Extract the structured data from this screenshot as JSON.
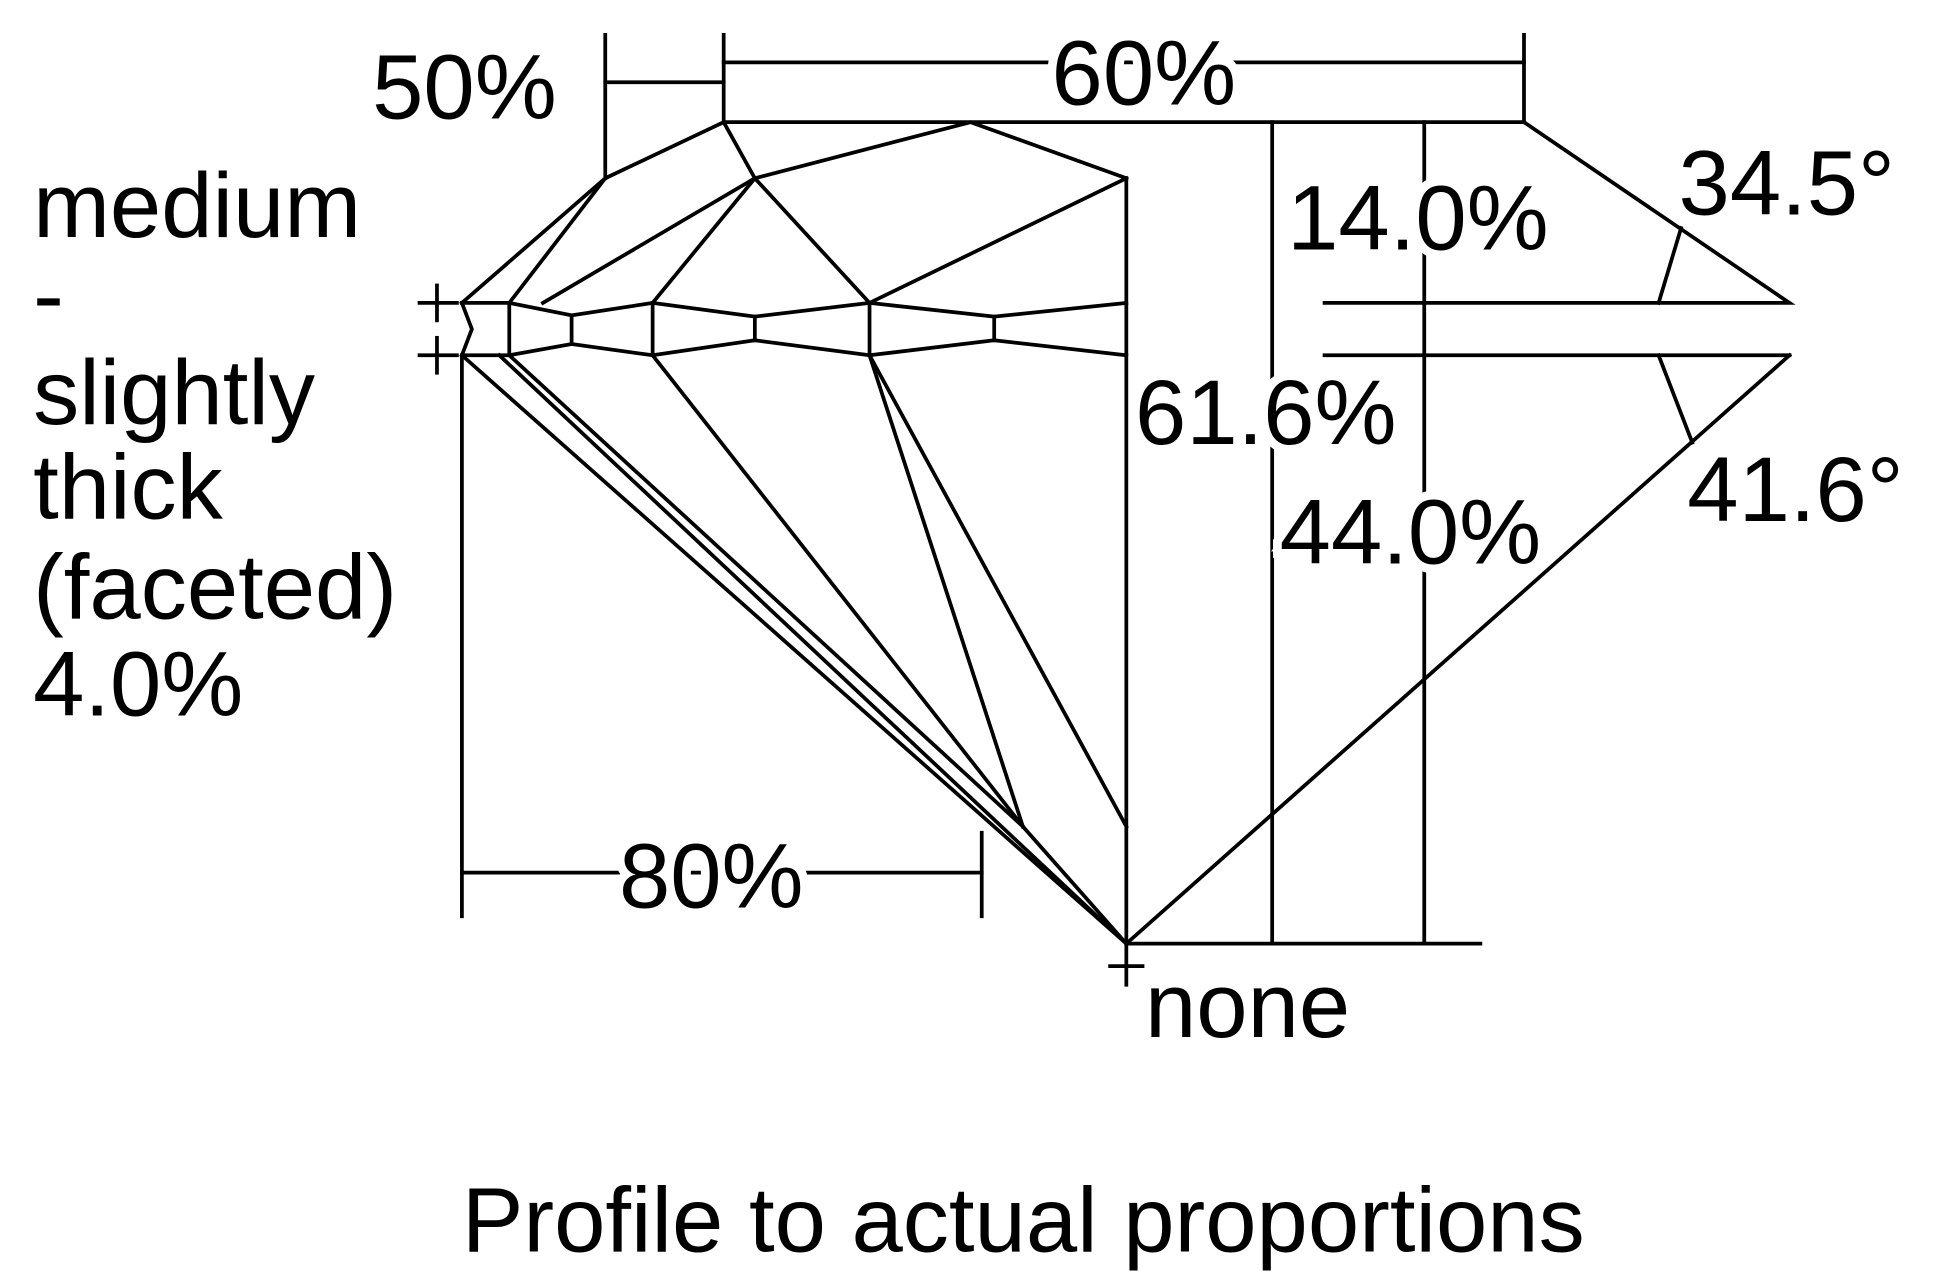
{
  "diagram": {
    "caption": "Profile to actual proportions",
    "girdle": {
      "lines": [
        "medium",
        "-",
        "slightly",
        "thick",
        "(faceted)",
        "4.0%"
      ]
    },
    "culet": "none",
    "table_percent": "60%",
    "star_length": "50%",
    "lower_half_length": "80%",
    "crown_height": "14.0%",
    "total_depth": "61.6%",
    "pavilion_depth": "44.0%",
    "crown_angle": "34.5°",
    "pavilion_angle": "41.6°"
  }
}
